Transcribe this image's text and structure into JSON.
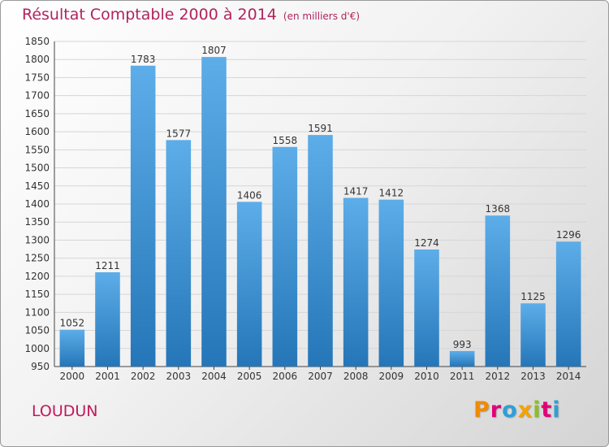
{
  "title": "Résultat Comptable 2000 à 2014",
  "subtitle": "(en milliers d'€)",
  "place": "LOUDUN",
  "brand": "Proxiti",
  "colors": {
    "title": "#b0245c",
    "place": "#c2185b",
    "bar_light": "#5dade9",
    "bar_dark": "#2576b8",
    "brand_letters": [
      "#f18a00",
      "#e2007a",
      "#2e9fd8",
      "#f5a300",
      "#8cbf26",
      "#e2007a",
      "#2e9fd8"
    ]
  },
  "chart_data": {
    "type": "bar",
    "title": "Résultat Comptable 2000 à 2014",
    "subtitle": "(en milliers d'€)",
    "xlabel": "",
    "ylabel": "",
    "categories": [
      "2000",
      "2001",
      "2002",
      "2003",
      "2004",
      "2005",
      "2006",
      "2007",
      "2008",
      "2009",
      "2010",
      "2011",
      "2012",
      "2013",
      "2014"
    ],
    "values": [
      1052,
      1211,
      1783,
      1577,
      1807,
      1406,
      1558,
      1591,
      1417,
      1412,
      1274,
      993,
      1368,
      1125,
      1296
    ],
    "ylim": [
      950,
      1850
    ],
    "yticks": [
      950,
      1000,
      1050,
      1100,
      1150,
      1200,
      1250,
      1300,
      1350,
      1400,
      1450,
      1500,
      1550,
      1600,
      1650,
      1700,
      1750,
      1800,
      1850
    ],
    "grid": true,
    "data_labels": true,
    "legend": "none"
  }
}
